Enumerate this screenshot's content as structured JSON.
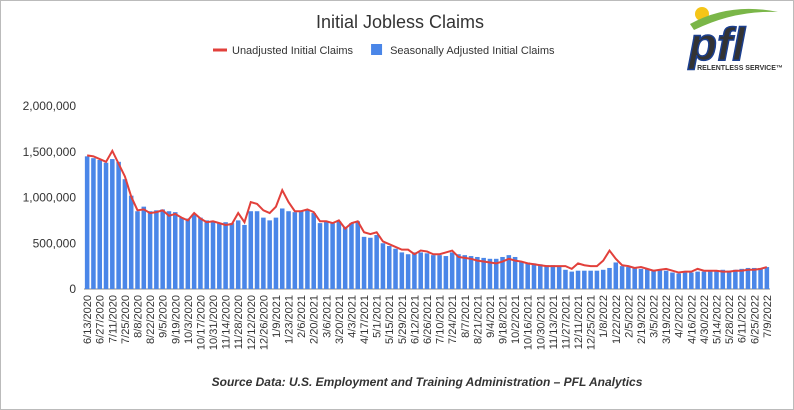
{
  "chart_data": {
    "type": "bar-line",
    "title": "Initial Jobless Claims",
    "source": "Source Data: U.S. Employment and Training Administration – PFL Analytics",
    "logo": {
      "text": "pfl",
      "tagline": "RELENTLESS SERVICE™"
    },
    "categories": [
      "6/13/2020",
      null,
      "6/27/2020",
      null,
      "7/11/2020",
      null,
      "7/25/2020",
      null,
      "8/8/2020",
      null,
      "8/22/2020",
      null,
      "9/5/2020",
      null,
      "9/19/2020",
      null,
      "10/3/2020",
      null,
      "10/17/2020",
      null,
      "10/31/2020",
      null,
      "11/14/2020",
      null,
      "11/28/2020",
      null,
      "12/12/2020",
      null,
      "12/26/2020",
      null,
      "1/9/2021",
      null,
      "1/23/2021",
      null,
      "2/6/2021",
      null,
      "2/20/2021",
      null,
      "3/6/2021",
      null,
      "3/20/2021",
      null,
      "4/3/2021",
      null,
      "4/17/2021",
      null,
      "5/1/2021",
      null,
      "5/15/2021",
      null,
      "5/29/2021",
      null,
      "6/12/2021",
      null,
      "6/26/2021",
      null,
      "7/10/2021",
      null,
      "7/24/2021",
      null,
      "8/7/2021",
      null,
      "8/21/2021",
      null,
      "9/4/2021",
      null,
      "9/18/2021",
      null,
      "10/2/2021",
      null,
      "10/16/2021",
      null,
      "10/30/2021",
      null,
      "11/13/2021",
      null,
      "11/27/2021",
      null,
      "12/11/2021",
      null,
      "12/25/2021",
      null,
      "1/8/2022",
      null,
      "1/22/2022",
      null,
      "2/5/2022",
      null,
      "2/19/2022",
      null,
      "3/5/2022",
      null,
      "3/19/2022",
      null,
      "4/2/2022",
      null,
      "4/16/2022",
      null,
      "4/30/2022",
      null,
      "5/14/2022",
      null,
      "5/28/2022",
      null,
      "6/11/2022",
      null,
      "6/25/2022",
      null,
      "7/9/2022"
    ],
    "series": [
      {
        "name": "Unadjusted Initial Claims",
        "kind": "line",
        "color": "#e2403b",
        "values": [
          1460000,
          1450000,
          1420000,
          1390000,
          1510000,
          1370000,
          1230000,
          1010000,
          860000,
          870000,
          830000,
          840000,
          860000,
          800000,
          820000,
          780000,
          750000,
          830000,
          770000,
          730000,
          740000,
          720000,
          700000,
          710000,
          830000,
          730000,
          950000,
          930000,
          860000,
          830000,
          900000,
          1080000,
          950000,
          850000,
          850000,
          870000,
          840000,
          740000,
          740000,
          720000,
          750000,
          660000,
          720000,
          740000,
          620000,
          600000,
          620000,
          520000,
          490000,
          460000,
          430000,
          430000,
          380000,
          420000,
          410000,
          380000,
          380000,
          400000,
          420000,
          350000,
          340000,
          330000,
          310000,
          300000,
          290000,
          280000,
          300000,
          330000,
          310000,
          300000,
          280000,
          270000,
          260000,
          250000,
          250000,
          250000,
          250000,
          220000,
          280000,
          260000,
          250000,
          250000,
          310000,
          420000,
          330000,
          260000,
          250000,
          230000,
          240000,
          220000,
          200000,
          210000,
          220000,
          200000,
          180000,
          190000,
          190000,
          220000,
          200000,
          200000,
          200000,
          190000,
          190000,
          200000,
          200000,
          210000,
          210000,
          220000,
          240000
        ]
      },
      {
        "name": "Seasonally Adjusted Initial Claims",
        "kind": "bar",
        "color": "#4a86e8",
        "values": [
          1450000,
          1430000,
          1410000,
          1380000,
          1420000,
          1390000,
          1200000,
          1020000,
          850000,
          900000,
          850000,
          860000,
          870000,
          850000,
          840000,
          780000,
          770000,
          820000,
          780000,
          750000,
          740000,
          720000,
          730000,
          720000,
          750000,
          700000,
          850000,
          850000,
          780000,
          750000,
          780000,
          880000,
          850000,
          840000,
          850000,
          860000,
          830000,
          720000,
          740000,
          720000,
          740000,
          680000,
          720000,
          740000,
          570000,
          560000,
          590000,
          500000,
          470000,
          440000,
          400000,
          380000,
          400000,
          400000,
          390000,
          370000,
          370000,
          360000,
          400000,
          380000,
          370000,
          360000,
          350000,
          340000,
          330000,
          330000,
          350000,
          370000,
          350000,
          300000,
          290000,
          280000,
          270000,
          260000,
          260000,
          250000,
          210000,
          190000,
          200000,
          200000,
          200000,
          200000,
          210000,
          230000,
          290000,
          250000,
          240000,
          230000,
          220000,
          220000,
          210000,
          210000,
          200000,
          180000,
          170000,
          180000,
          180000,
          190000,
          190000,
          200000,
          200000,
          210000,
          200000,
          210000,
          220000,
          230000,
          230000,
          230000,
          240000
        ]
      }
    ],
    "ylim": [
      0,
      2000000
    ],
    "yticks": [
      0,
      {
        "value": 500000,
        "label": "500,000"
      },
      {
        "value": 1000000,
        "label": "1,000,000"
      },
      {
        "value": 1500000,
        "label": "1,500,000"
      },
      {
        "value": 2000000,
        "label": "2,000,000"
      }
    ],
    "grid": false
  }
}
